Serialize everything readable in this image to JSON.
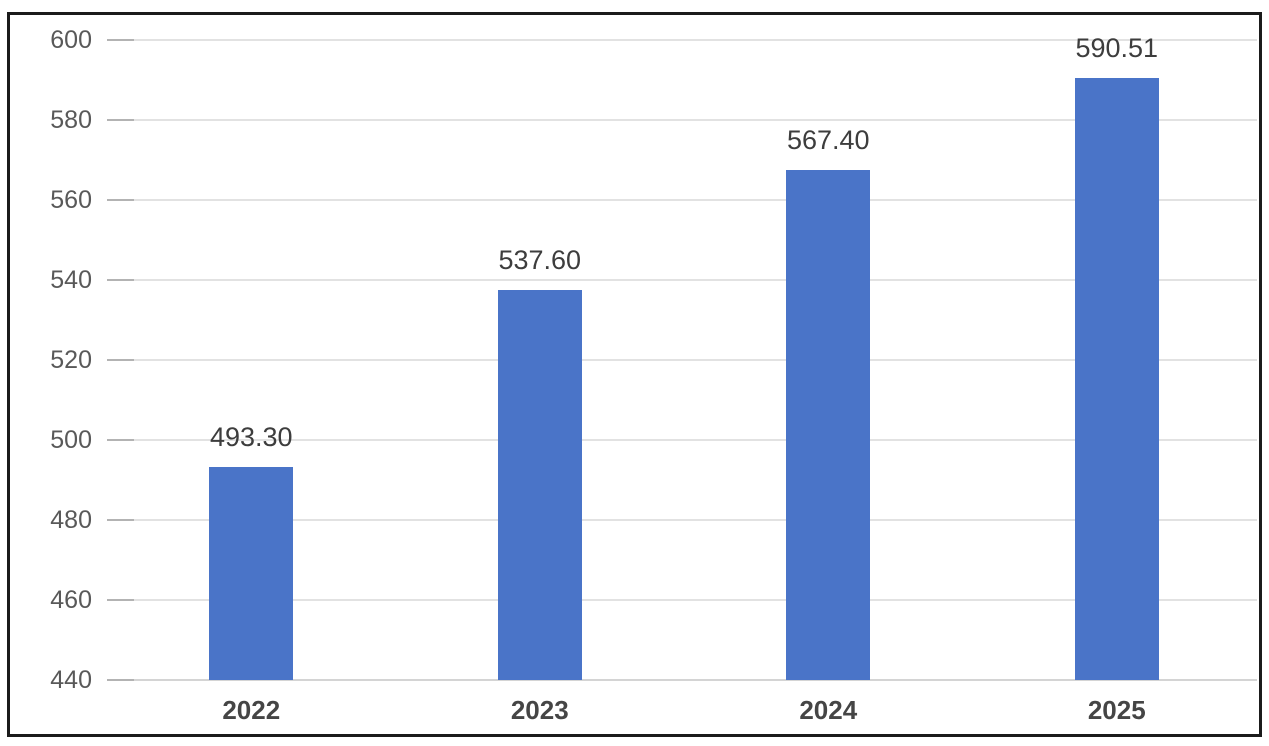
{
  "chart_data": {
    "type": "bar",
    "title": "",
    "xlabel": "",
    "ylabel": "",
    "categories": [
      "2022",
      "2023",
      "2024",
      "2025"
    ],
    "values": [
      493.3,
      537.6,
      567.4,
      590.51
    ],
    "data_labels": [
      "493.30",
      "537.60",
      "567.40",
      "590.51"
    ],
    "ylim": [
      440,
      600
    ],
    "ytick_step": 20,
    "yticks": [
      600,
      580,
      560,
      540,
      520,
      500,
      480,
      460,
      440
    ],
    "grid": "horizontal",
    "legend": "none",
    "colors": {
      "bar": "#4a74c8",
      "gridline": "#e2e2e2",
      "axis_tick": "#b3b3b3",
      "baseline": "#d4d4d4",
      "y_tick_text": "#595959",
      "x_tick_text": "#454545",
      "data_label_text": "#3d3d3d",
      "frame_border": "#1b1b1b",
      "background": "#ffffff"
    }
  }
}
